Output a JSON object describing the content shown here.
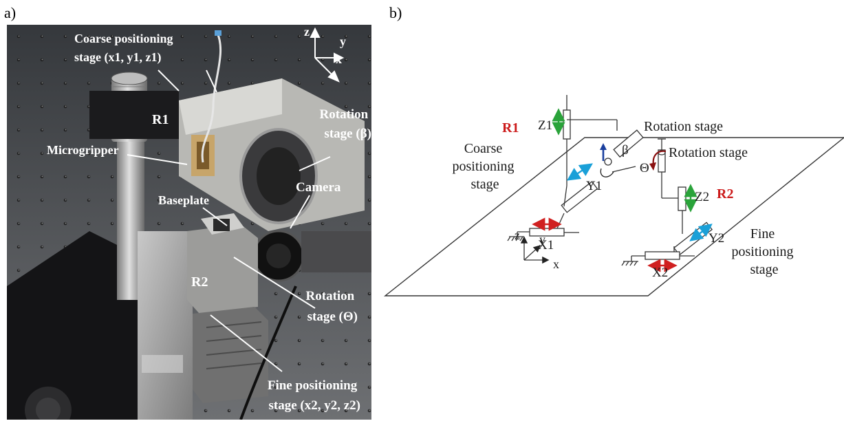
{
  "panels": {
    "a": "a)",
    "b": "b)"
  },
  "photo": {
    "coarse_label": [
      "Coarse positioning",
      "stage (x1, y1, z1)"
    ],
    "r1": "R1",
    "rotation_beta": [
      "Rotation",
      "stage (β)"
    ],
    "microgripper": "Microgripper",
    "camera": "Camera",
    "baseplate": "Baseplate",
    "r2": "R2",
    "rotation_theta": [
      "Rotation",
      "stage (Θ)"
    ],
    "fine_label": [
      "Fine positioning",
      "stage (x2, y2, z2)"
    ],
    "axes": {
      "z": "z",
      "y": "y",
      "x": "x"
    }
  },
  "diagram": {
    "r1": "R1",
    "r2": "R2",
    "z1": "Z1",
    "y1": "Y1",
    "x1": "X1",
    "z2": "Z2",
    "y2": "Y2",
    "x2": "X2",
    "beta": "β",
    "theta": "Θ",
    "rotation_stage_1": "Rotation stage",
    "rotation_stage_2": "Rotation stage",
    "coarse_label": [
      "Coarse",
      "positioning",
      "stage"
    ],
    "fine_label": [
      "Fine",
      "positioning",
      "stage"
    ],
    "axes": {
      "z": "z",
      "y": "y",
      "x": "x"
    }
  },
  "colors": {
    "red_arrow": "#d02020",
    "green_arrow": "#2aa33a",
    "cyan_arrow": "#1aa0d8",
    "blue_arrow": "#1a3f9e",
    "dark_red_arrow": "#8a1010",
    "label_red": "#cc1b1b"
  }
}
